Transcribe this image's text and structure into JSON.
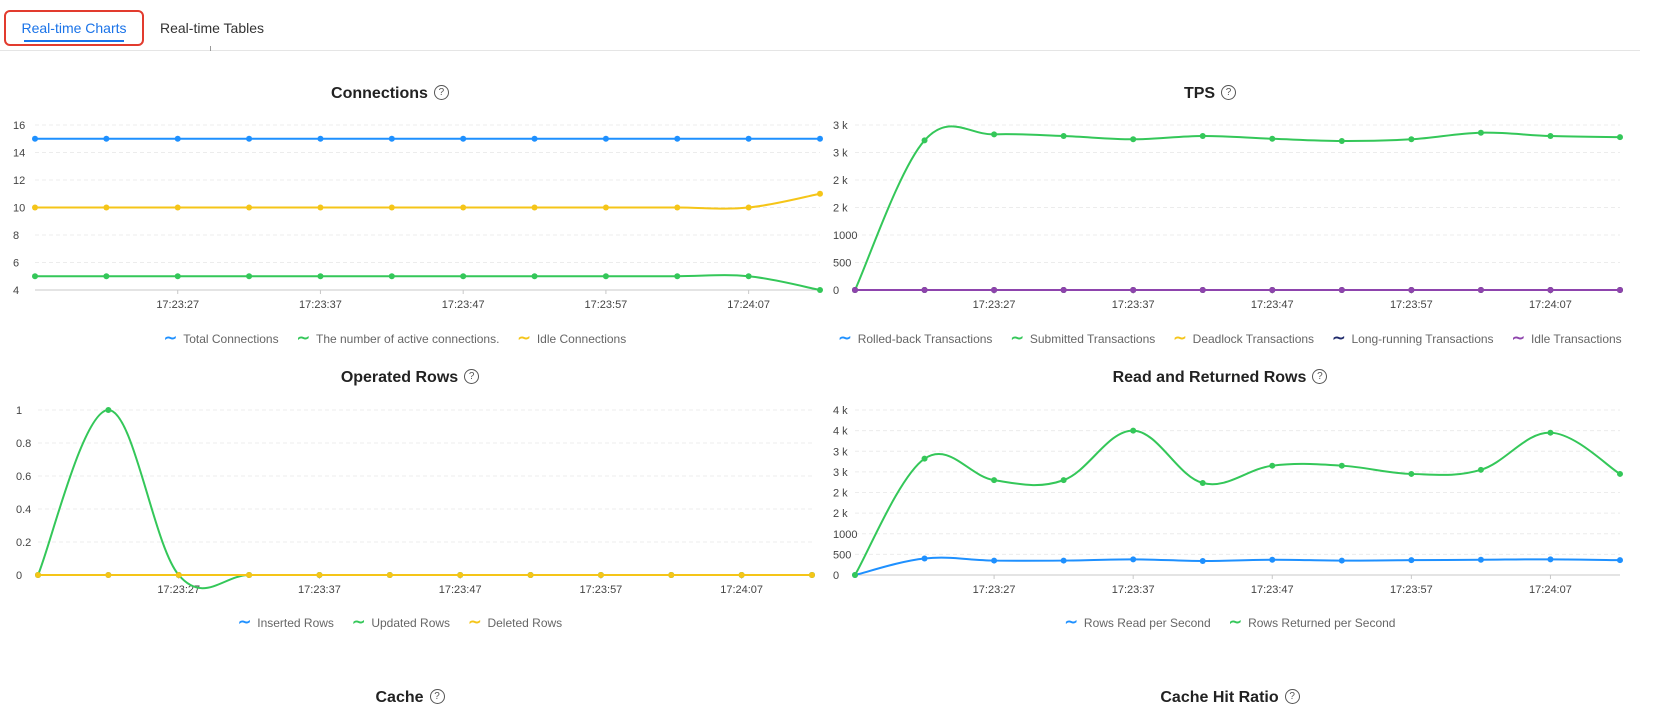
{
  "tabs": [
    {
      "label": "Real-time Charts",
      "active": true
    },
    {
      "label": "Real-time Tables",
      "active": false
    }
  ],
  "help_glyph": "?",
  "colors": {
    "blue": "#1e90ff",
    "green": "#34c759",
    "yellow": "#f5c518",
    "navy": "#1f2a6b",
    "purple": "#8e44ad"
  },
  "chart_data": [
    {
      "type": "line",
      "title": "Connections",
      "x": [
        "17:23:17",
        "17:23:22",
        "17:23:27",
        "17:23:32",
        "17:23:37",
        "17:23:42",
        "17:23:47",
        "17:23:52",
        "17:23:57",
        "17:24:02",
        "17:24:07",
        "17:24:12"
      ],
      "xticks": [
        "17:23:27",
        "17:23:37",
        "17:23:47",
        "17:23:57",
        "17:24:07"
      ],
      "yticks": [
        4,
        6,
        8,
        10,
        12,
        14,
        16
      ],
      "yticklabels": [
        "4",
        "6",
        "8",
        "10",
        "12",
        "14",
        "16"
      ],
      "ylim": [
        4,
        16
      ],
      "series": [
        {
          "name": "Total Connections",
          "color": "#1e90ff",
          "values": [
            15,
            15,
            15,
            15,
            15,
            15,
            15,
            15,
            15,
            15,
            15,
            15
          ]
        },
        {
          "name": "The number of active connections.",
          "color": "#34c759",
          "values": [
            5,
            5,
            5,
            5,
            5,
            5,
            5,
            5,
            5,
            5,
            5,
            4
          ]
        },
        {
          "name": "Idle Connections",
          "color": "#f5c518",
          "values": [
            10,
            10,
            10,
            10,
            10,
            10,
            10,
            10,
            10,
            10,
            10,
            11
          ]
        }
      ]
    },
    {
      "type": "line",
      "title": "TPS",
      "x": [
        "17:23:17",
        "17:23:22",
        "17:23:27",
        "17:23:32",
        "17:23:37",
        "17:23:42",
        "17:23:47",
        "17:23:52",
        "17:23:57",
        "17:24:02",
        "17:24:07",
        "17:24:12"
      ],
      "xticks": [
        "17:23:27",
        "17:23:37",
        "17:23:47",
        "17:23:57",
        "17:24:07"
      ],
      "yticks": [
        0,
        500,
        1000,
        1500,
        2000,
        2500,
        3000
      ],
      "yticklabels": [
        "0",
        "500",
        "1000",
        "2 k",
        "2 k",
        "3 k",
        "3 k"
      ],
      "ylim": [
        0,
        3000
      ],
      "series": [
        {
          "name": "Rolled-back Transactions",
          "color": "#1e90ff",
          "values": [
            0,
            0,
            0,
            0,
            0,
            0,
            0,
            0,
            0,
            0,
            0,
            0
          ]
        },
        {
          "name": "Submitted Transactions",
          "color": "#34c759",
          "values": [
            0,
            2720,
            2830,
            2800,
            2740,
            2800,
            2750,
            2710,
            2740,
            2860,
            2800,
            2780
          ]
        },
        {
          "name": "Deadlock Transactions",
          "color": "#f5c518",
          "values": [
            0,
            0,
            0,
            0,
            0,
            0,
            0,
            0,
            0,
            0,
            0,
            0
          ]
        },
        {
          "name": "Long-running Transactions",
          "color": "#1f2a6b",
          "values": [
            0,
            0,
            0,
            0,
            0,
            0,
            0,
            0,
            0,
            0,
            0,
            0
          ]
        },
        {
          "name": "Idle Transactions",
          "color": "#8e44ad",
          "values": [
            0,
            0,
            0,
            0,
            0,
            0,
            0,
            0,
            0,
            0,
            0,
            0
          ]
        }
      ]
    },
    {
      "type": "line",
      "title": "Operated Rows",
      "x": [
        "17:23:17",
        "17:23:22",
        "17:23:27",
        "17:23:32",
        "17:23:37",
        "17:23:42",
        "17:23:47",
        "17:23:52",
        "17:23:57",
        "17:24:02",
        "17:24:07",
        "17:24:12"
      ],
      "xticks": [
        "17:23:27",
        "17:23:37",
        "17:23:47",
        "17:23:57",
        "17:24:07"
      ],
      "yticks": [
        0,
        0.2,
        0.4,
        0.6,
        0.8,
        1
      ],
      "yticklabels": [
        "0",
        "0.2",
        "0.4",
        "0.6",
        "0.8",
        "1"
      ],
      "ylim": [
        0,
        1
      ],
      "series": [
        {
          "name": "Inserted Rows",
          "color": "#1e90ff",
          "values": [
            0,
            0,
            0,
            0,
            0,
            0,
            0,
            0,
            0,
            0,
            0,
            0
          ]
        },
        {
          "name": "Updated Rows",
          "color": "#34c759",
          "values": [
            0,
            1,
            0,
            0,
            0,
            0,
            0,
            0,
            0,
            0,
            0,
            0
          ]
        },
        {
          "name": "Deleted Rows",
          "color": "#f5c518",
          "values": [
            0,
            0,
            0,
            0,
            0,
            0,
            0,
            0,
            0,
            0,
            0,
            0
          ]
        }
      ]
    },
    {
      "type": "line",
      "title": "Read and Returned Rows",
      "x": [
        "17:23:17",
        "17:23:22",
        "17:23:27",
        "17:23:32",
        "17:23:37",
        "17:23:42",
        "17:23:47",
        "17:23:52",
        "17:23:57",
        "17:24:02",
        "17:24:07",
        "17:24:12"
      ],
      "xticks": [
        "17:23:27",
        "17:23:37",
        "17:23:47",
        "17:23:57",
        "17:24:07"
      ],
      "yticks": [
        0,
        500,
        1000,
        1500,
        2000,
        2500,
        3000,
        3500,
        4000
      ],
      "yticklabels": [
        "0",
        "500",
        "1000",
        "2 k",
        "2 k",
        "3 k",
        "3 k",
        "4 k",
        "4 k"
      ],
      "ylim": [
        0,
        4000
      ],
      "series": [
        {
          "name": "Rows Read per Second",
          "color": "#1e90ff",
          "values": [
            0,
            400,
            350,
            350,
            380,
            340,
            370,
            350,
            360,
            370,
            380,
            360
          ]
        },
        {
          "name": "Rows Returned per Second",
          "color": "#34c759",
          "values": [
            0,
            2820,
            2300,
            2300,
            3500,
            2230,
            2650,
            2650,
            2450,
            2550,
            3450,
            2450
          ]
        }
      ]
    }
  ],
  "more_titles": [
    "Cache",
    "Cache Hit Ratio"
  ]
}
